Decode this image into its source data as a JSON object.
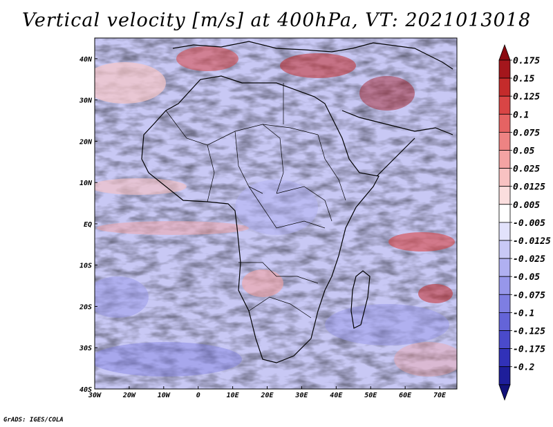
{
  "title": "Vertical velocity [m/s] at 400hPa, VT: 2021013018",
  "credit": "GrADS: IGES/COLA",
  "map": {
    "lon_ticks": [
      "30W",
      "20W",
      "10W",
      "0",
      "10E",
      "20E",
      "30E",
      "40E",
      "50E",
      "60E",
      "70E"
    ],
    "lat_ticks": [
      "40N",
      "30N",
      "20N",
      "10N",
      "EQ",
      "10S",
      "20S",
      "30S",
      "40S"
    ],
    "lon_range": [
      -30,
      75
    ],
    "lat_range": [
      -40,
      45
    ]
  },
  "colorbar": {
    "labels": [
      "0.175",
      "0.15",
      "0.125",
      "0.1",
      "0.075",
      "0.05",
      "0.025",
      "0.0125",
      "0.005",
      "-0.005",
      "-0.0125",
      "-0.025",
      "-0.05",
      "-0.075",
      "-0.1",
      "-0.125",
      "-0.175",
      "-0.2"
    ],
    "colors": [
      "#a4161c",
      "#c42b2b",
      "#d94545",
      "#e56363",
      "#ee8383",
      "#f4a3a3",
      "#f8c2c2",
      "#fbdede",
      "#ffffff",
      "#e2e2fb",
      "#c9c9f6",
      "#b0b0f1",
      "#9797ea",
      "#7e7ee2",
      "#6464d8",
      "#4a4acb",
      "#3131b8",
      "#1e1e9a"
    ],
    "top_arrow_color": "#8b0a10",
    "bottom_arrow_color": "#12127a"
  }
}
